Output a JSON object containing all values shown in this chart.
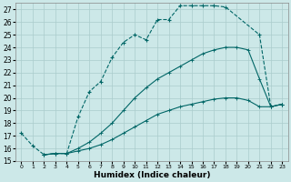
{
  "title": "",
  "xlabel": "Humidex (Indice chaleur)",
  "xlim": [
    -0.5,
    23.5
  ],
  "ylim": [
    15,
    27.5
  ],
  "yticks": [
    15,
    16,
    17,
    18,
    19,
    20,
    21,
    22,
    23,
    24,
    25,
    26,
    27
  ],
  "xticks": [
    0,
    1,
    2,
    3,
    4,
    5,
    6,
    7,
    8,
    9,
    10,
    11,
    12,
    13,
    14,
    15,
    16,
    17,
    18,
    19,
    20,
    21,
    22,
    23
  ],
  "bg_color": "#cce8e8",
  "grid_color": "#aacccc",
  "line_color": "#006666",
  "line1_x": [
    0,
    1,
    2,
    3,
    4,
    5,
    6,
    7,
    8,
    9,
    10,
    11,
    12,
    13,
    14,
    15,
    16,
    17,
    18,
    21,
    22,
    23
  ],
  "line1_y": [
    17.2,
    16.2,
    15.5,
    15.6,
    15.6,
    18.5,
    20.5,
    21.3,
    23.2,
    24.4,
    25.0,
    24.6,
    26.2,
    26.2,
    27.3,
    27.3,
    27.3,
    27.3,
    27.2,
    25.0,
    19.3,
    19.5
  ],
  "line2_x": [
    2,
    3,
    4,
    5,
    6,
    7,
    8,
    9,
    10,
    11,
    12,
    13,
    14,
    15,
    16,
    17,
    18,
    19,
    20,
    21,
    22,
    23
  ],
  "line2_y": [
    15.5,
    15.6,
    15.6,
    16.0,
    16.5,
    17.2,
    18.0,
    19.0,
    20.0,
    20.8,
    21.5,
    22.0,
    22.5,
    23.0,
    23.5,
    23.8,
    24.0,
    24.0,
    23.8,
    21.5,
    19.3,
    19.5
  ],
  "line3_x": [
    2,
    3,
    4,
    5,
    6,
    7,
    8,
    9,
    10,
    11,
    12,
    13,
    14,
    15,
    16,
    17,
    18,
    19,
    20,
    21,
    22,
    23
  ],
  "line3_y": [
    15.5,
    15.6,
    15.6,
    15.8,
    16.0,
    16.3,
    16.7,
    17.2,
    17.7,
    18.2,
    18.7,
    19.0,
    19.3,
    19.5,
    19.7,
    19.9,
    20.0,
    20.0,
    19.8,
    19.3,
    19.3,
    19.5
  ]
}
